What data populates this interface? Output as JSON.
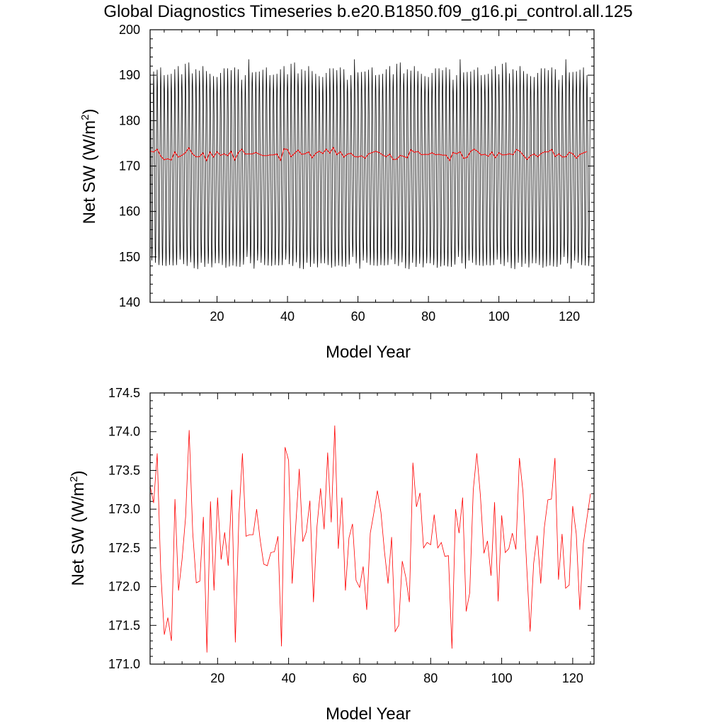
{
  "title": "Global Diagnostics Timeseries b.e20.B1850.f09_g16.pi_control.all.125",
  "colors": {
    "monthly": "#000000",
    "annual": "#ff0000",
    "axes": "#000000"
  },
  "chart_data": [
    {
      "type": "line",
      "name": "top-panel",
      "xlabel": "Model Year",
      "ylabel": "Net SW (W/m2)",
      "ylabel_main": "Net SW (W/m",
      "ylabel_sup": "2",
      "ylabel_tail": ")",
      "xlim": [
        1,
        127
      ],
      "ylim": [
        140,
        200
      ],
      "xticks": [
        20,
        40,
        60,
        80,
        100,
        120
      ],
      "xtick_labels": [
        "20",
        "40",
        "60",
        "80",
        "100",
        "120"
      ],
      "yticks": [
        140,
        150,
        160,
        170,
        180,
        190,
        200
      ],
      "ytick_labels": [
        "140",
        "150",
        "160",
        "170",
        "180",
        "190",
        "200"
      ],
      "grid": false,
      "series": [
        {
          "role": "monthly",
          "color": "#000000",
          "seasonal_cycle": [
            189.6,
            186.6,
            181.1,
            172.1,
            161.9,
            153.5,
            149.5,
            151.1,
            157.6,
            166.9,
            176.5,
            185.0
          ],
          "annual_peaks_sample": [
            190.7,
            191.3,
            189.0,
            190.2,
            191.5,
            190.1,
            189.8,
            190.8,
            191.0,
            190.0,
            192.5,
            191.1,
            190.3,
            189.6,
            191.2,
            192.0,
            193.5,
            192.8,
            191.7,
            191.3,
            190.5,
            191.7,
            190.9,
            190.6,
            190.4,
            191.3,
            192.0,
            191.5,
            190.0,
            190.3
          ],
          "annual_troughs_sample": [
            150.0,
            149.4,
            148.6,
            149.2,
            148.8,
            147.9,
            148.1,
            148.7,
            147.8,
            148.1,
            147.7,
            148.6,
            148.4,
            148.2,
            148.7,
            147.5,
            148.1,
            148.0,
            147.8,
            148.3,
            148.2,
            148.6,
            147.4,
            148.0,
            147.6,
            148.2,
            147.3,
            147.9,
            148.2,
            148.5
          ]
        },
        {
          "role": "annual-mean",
          "color": "#ff0000",
          "values_ref": "annual"
        }
      ]
    },
    {
      "type": "line",
      "name": "bottom-panel",
      "xlabel": "Model Year",
      "ylabel": "Net SW (W/m2)",
      "ylabel_main": "Net SW (W/m",
      "ylabel_sup": "2",
      "ylabel_tail": ")",
      "xlim": [
        1,
        126
      ],
      "ylim": [
        171.0,
        174.5
      ],
      "xticks": [
        20,
        40,
        60,
        80,
        100,
        120
      ],
      "xtick_labels": [
        "20",
        "40",
        "60",
        "80",
        "100",
        "120"
      ],
      "yticks": [
        171.0,
        171.5,
        172.0,
        172.5,
        173.0,
        173.5,
        174.0,
        174.5
      ],
      "ytick_labels": [
        "171.0",
        "171.5",
        "172.0",
        "172.5",
        "173.0",
        "173.5",
        "174.0",
        "174.5"
      ],
      "grid": false,
      "series": [
        {
          "role": "annual-mean",
          "color": "#ff0000",
          "x_start": 1,
          "values": [
            173.3,
            173.08,
            173.72,
            172.2,
            171.38,
            171.6,
            171.3,
            173.13,
            171.95,
            172.35,
            172.9,
            174.02,
            172.7,
            172.05,
            172.07,
            172.9,
            171.15,
            173.1,
            171.95,
            173.15,
            172.35,
            172.7,
            172.27,
            173.25,
            171.28,
            172.9,
            173.72,
            172.65,
            172.67,
            172.67,
            173.0,
            172.6,
            172.29,
            172.27,
            172.44,
            172.45,
            172.65,
            171.23,
            173.8,
            173.63,
            172.04,
            172.78,
            173.52,
            172.58,
            172.71,
            173.11,
            171.8,
            172.78,
            173.27,
            172.74,
            173.73,
            172.83,
            174.08,
            172.49,
            173.15,
            171.95,
            172.63,
            172.81,
            172.08,
            171.99,
            172.26,
            171.7,
            172.69,
            172.95,
            173.24,
            172.96,
            172.45,
            172.04,
            172.64,
            171.42,
            171.5,
            172.33,
            172.12,
            171.8,
            173.6,
            173.03,
            173.21,
            172.5,
            172.57,
            172.54,
            172.93,
            172.5,
            172.57,
            172.39,
            172.4,
            171.2,
            173.0,
            172.69,
            173.15,
            171.68,
            171.92,
            173.25,
            173.72,
            173.18,
            172.43,
            172.59,
            172.14,
            173.09,
            171.81,
            172.92,
            172.44,
            172.49,
            172.69,
            172.48,
            173.66,
            173.22,
            172.3,
            171.42,
            172.3,
            172.66,
            172.04,
            172.76,
            173.12,
            173.13,
            173.66,
            172.09,
            172.68,
            171.98,
            172.02,
            173.04,
            172.68,
            171.7,
            172.56,
            172.88,
            173.2
          ]
        }
      ]
    }
  ]
}
